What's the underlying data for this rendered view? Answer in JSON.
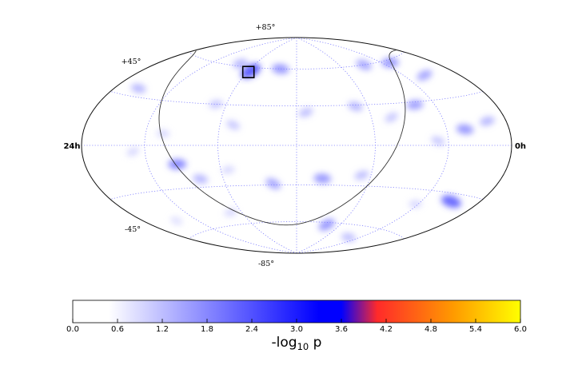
{
  "chart_data": {
    "type": "heatmap",
    "projection": "hammer-aitoff",
    "axis_labels": {
      "dec_top": "+85°",
      "dec_upper": "+45°",
      "dec_lower": "-45°",
      "dec_bottom": "-85°",
      "ra_left": "24h",
      "ra_right": "0h"
    },
    "grid": true,
    "ra_gridlines_hours": [
      4,
      8,
      12,
      16,
      20
    ],
    "dec_gridlines_deg": [
      -60,
      -30,
      0,
      30,
      60
    ],
    "galactic_plane": true,
    "marker": {
      "shape": "square",
      "ra_h": 15.9,
      "dec_deg": 56
    },
    "hotspots": [
      {
        "ra_h": 15.8,
        "dec_deg": 57,
        "value": 2.6
      },
      {
        "ra_h": 13.4,
        "dec_deg": 60,
        "value": 1.8
      },
      {
        "ra_h": 17.4,
        "dec_deg": 62,
        "value": 1.4
      },
      {
        "ra_h": 5.8,
        "dec_deg": 60,
        "value": 1.6
      },
      {
        "ra_h": 3.3,
        "dec_deg": 58,
        "value": 1.8
      },
      {
        "ra_h": 2.5,
        "dec_deg": 46,
        "value": 1.6
      },
      {
        "ra_h": 22.3,
        "dec_deg": 35,
        "value": 1.4
      },
      {
        "ra_h": 16.6,
        "dec_deg": 30,
        "value": 1.2
      },
      {
        "ra_h": 15.3,
        "dec_deg": 15,
        "value": 1.2
      },
      {
        "ra_h": 19.0,
        "dec_deg": 8,
        "value": 1.0
      },
      {
        "ra_h": 11.5,
        "dec_deg": 25,
        "value": 1.3
      },
      {
        "ra_h": 8.7,
        "dec_deg": 29,
        "value": 1.4
      },
      {
        "ra_h": 5.2,
        "dec_deg": 28,
        "value": 1.7
      },
      {
        "ra_h": 6.9,
        "dec_deg": 20,
        "value": 1.2
      },
      {
        "ra_h": 2.9,
        "dec_deg": 10,
        "value": 1.8
      },
      {
        "ra_h": 1.3,
        "dec_deg": 14,
        "value": 1.4
      },
      {
        "ra_h": 4.6,
        "dec_deg": 3,
        "value": 1.2
      },
      {
        "ra_h": 18.3,
        "dec_deg": -13,
        "value": 2.0
      },
      {
        "ra_h": 20.7,
        "dec_deg": -4,
        "value": 1.0
      },
      {
        "ra_h": 17.3,
        "dec_deg": -24,
        "value": 1.4
      },
      {
        "ra_h": 15.6,
        "dec_deg": -18,
        "value": 1.0
      },
      {
        "ra_h": 13.3,
        "dec_deg": -29,
        "value": 1.6
      },
      {
        "ra_h": 10.6,
        "dec_deg": -25,
        "value": 1.8
      },
      {
        "ra_h": 8.5,
        "dec_deg": -22,
        "value": 1.3
      },
      {
        "ra_h": 2.0,
        "dec_deg": -35,
        "value": 2.4
      },
      {
        "ra_h": 4.2,
        "dec_deg": -40,
        "value": 1.0
      },
      {
        "ra_h": 9.2,
        "dec_deg": -62,
        "value": 1.8
      },
      {
        "ra_h": 5.2,
        "dec_deg": -70,
        "value": 1.3
      },
      {
        "ra_h": 16.8,
        "dec_deg": -50,
        "value": 1.0
      },
      {
        "ra_h": 21.6,
        "dec_deg": -50,
        "value": 0.9
      }
    ],
    "colorbar": {
      "label_main": "-log",
      "label_sub": "10",
      "label_tail": " p",
      "range": [
        0.0,
        6.0
      ],
      "ticks": [
        "0.0",
        "0.6",
        "1.2",
        "1.8",
        "2.4",
        "3.0",
        "3.6",
        "4.2",
        "4.8",
        "5.4",
        "6.0"
      ],
      "colors": [
        "#ffffff",
        "#ffffff",
        "#0000ff",
        "#0000ff",
        "#ff2a2a",
        "#ff9a00",
        "#ffff00"
      ],
      "color_stops": [
        0.0,
        0.08,
        0.55,
        0.6,
        0.68,
        0.85,
        1.0
      ]
    }
  }
}
